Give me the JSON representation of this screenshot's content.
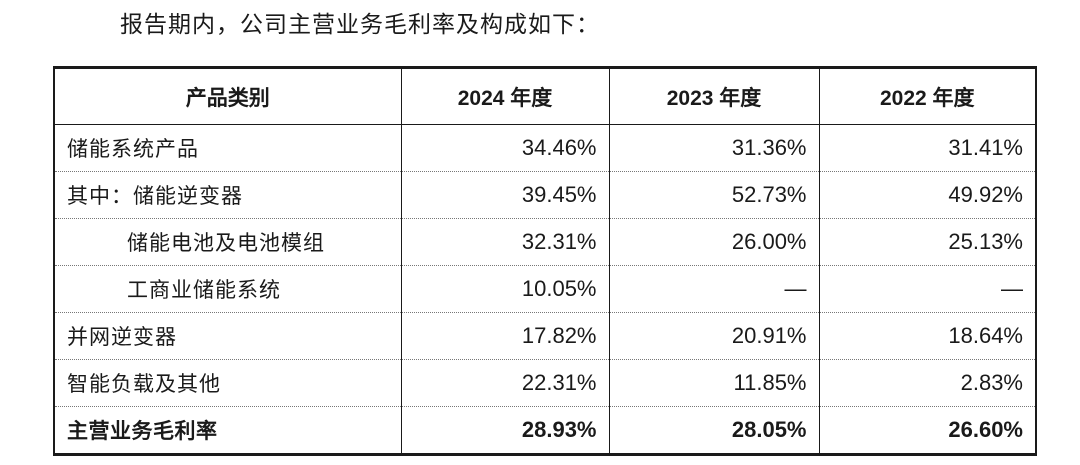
{
  "intro_text": "报告期内，公司主营业务毛利率及构成如下：",
  "table": {
    "headers": [
      "产品类别",
      "2024 年度",
      "2023 年度",
      "2022 年度"
    ],
    "rows": [
      {
        "label": "储能系统产品",
        "values": [
          "34.46%",
          "31.36%",
          "31.41%"
        ]
      },
      {
        "label": "其中：储能逆变器",
        "values": [
          "39.45%",
          "52.73%",
          "49.92%"
        ]
      },
      {
        "label": "储能电池及电池模组",
        "values": [
          "32.31%",
          "26.00%",
          "25.13%"
        ]
      },
      {
        "label": "工商业储能系统",
        "values": [
          "10.05%",
          "—",
          "—"
        ]
      },
      {
        "label": "并网逆变器",
        "values": [
          "17.82%",
          "20.91%",
          "18.64%"
        ]
      },
      {
        "label": "智能负载及其他",
        "values": [
          "22.31%",
          "11.85%",
          "2.83%"
        ]
      },
      {
        "label": "主营业务毛利率",
        "values": [
          "28.93%",
          "28.05%",
          "26.60%"
        ]
      }
    ]
  }
}
